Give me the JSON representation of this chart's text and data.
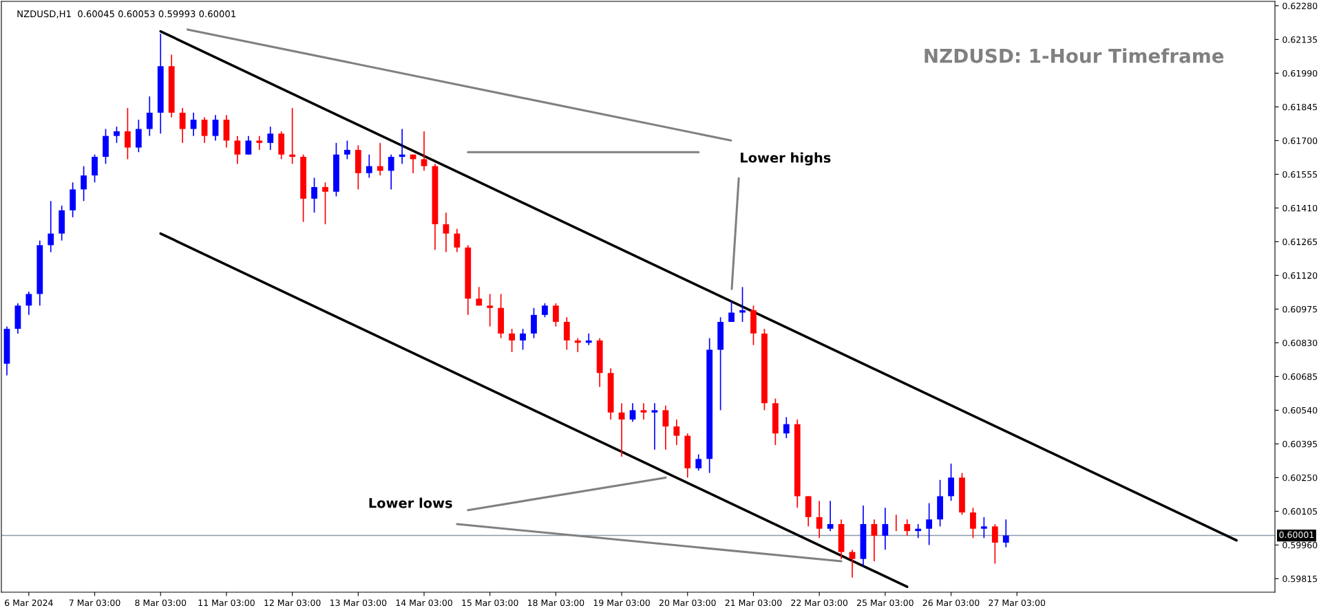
{
  "chart_data": {
    "type": "candlestick",
    "title": "NZDUSD,H1  0.60045 0.60053 0.59993 0.60001",
    "annotations": [
      "NZDUSD: 1-Hour Timeframe",
      "Lower highs",
      "Lower lows"
    ],
    "categories": [
      null,
      null,
      "6 Mar 2024",
      null,
      null,
      null,
      null,
      null,
      "7 Mar 03:00",
      null,
      null,
      null,
      null,
      null,
      "8 Mar 03:00",
      null,
      null,
      null,
      null,
      null,
      "11 Mar 03:00",
      null,
      null,
      null,
      null,
      null,
      "12 Mar 03:00",
      null,
      null,
      null,
      null,
      null,
      "13 Mar 03:00",
      null,
      null,
      null,
      null,
      null,
      "14 Mar 03:00",
      null,
      null,
      null,
      null,
      null,
      "15 Mar 03:00",
      null,
      null,
      null,
      null,
      null,
      "18 Mar 03:00",
      null,
      null,
      null,
      null,
      null,
      "19 Mar 03:00",
      null,
      null,
      null,
      null,
      null,
      "20 Mar 03:00",
      null,
      null,
      null,
      null,
      null,
      "21 Mar 03:00",
      null,
      null,
      null,
      null,
      null,
      "22 Mar 03:00",
      null,
      null,
      null,
      null,
      null,
      "25 Mar 03:00",
      null,
      null,
      null,
      null,
      null,
      "26 Mar 03:00",
      null,
      null,
      null,
      null,
      null,
      "27 Mar 03:00",
      null,
      null,
      null,
      null,
      null,
      null,
      null,
      null,
      null,
      null,
      null,
      null,
      null,
      null,
      null,
      null,
      null,
      null,
      null,
      null,
      null,
      null,
      null
    ],
    "colors": [
      "#0000ff",
      "#0000ff",
      "#0000ff",
      "#0000ff",
      "#0000ff",
      "#0000ff",
      "#0000ff",
      "#0000ff",
      "#0000ff",
      "#0000ff",
      "#0000ff",
      "#ff0000",
      "#0000ff",
      "#0000ff",
      "#0000ff",
      "#ff0000",
      "#ff0000",
      "#0000ff",
      "#ff0000",
      "#0000ff",
      "#ff0000",
      "#ff0000",
      "#0000ff",
      "#ff0000",
      "#0000ff",
      "#ff0000",
      "#ff0000",
      "#ff0000",
      "#0000ff",
      "#ff0000",
      "#0000ff",
      "#0000ff",
      "#ff0000",
      "#0000ff",
      "#ff0000",
      "#0000ff",
      "#0000ff",
      "#ff0000",
      "#ff0000",
      "#ff0000",
      "#ff0000",
      "#ff0000",
      "#ff0000",
      "#ff0000",
      "#ff0000",
      "#ff0000",
      "#ff0000",
      "#0000ff",
      "#0000ff",
      "#0000ff",
      "#ff0000",
      "#ff0000",
      "#ff0000",
      "#0000ff",
      "#ff0000",
      "#ff0000",
      "#ff0000",
      "#0000ff",
      "#ff0000",
      "#0000ff",
      "#ff0000",
      "#ff0000",
      "#ff0000",
      "#0000ff",
      "#0000ff",
      "#0000ff",
      "#0000ff",
      "#0000ff",
      "#ff0000",
      "#ff0000",
      "#ff0000",
      "#0000ff",
      "#ff0000",
      "#ff0000",
      "#ff0000",
      "#0000ff",
      "#ff0000",
      "#ff0000",
      "#0000ff",
      "#ff0000",
      "#0000ff",
      "#ff0000",
      "#ff0000",
      "#0000ff",
      "#0000ff",
      "#0000ff",
      "#0000ff",
      "#ff0000",
      "#ff0000",
      "#0000ff",
      "#ff0000",
      "#0000ff",
      null,
      null,
      null,
      null,
      null,
      null,
      null,
      null,
      null,
      null,
      null,
      null,
      null,
      null,
      null,
      null,
      null,
      null,
      null,
      null,
      null,
      null,
      null,
      null
    ],
    "ohlc": [
      [
        0.6074,
        0.609,
        0.6069,
        0.6089
      ],
      [
        0.6089,
        0.61,
        0.6087,
        0.6099
      ],
      [
        0.6099,
        0.6105,
        0.6095,
        0.6104
      ],
      [
        0.6104,
        0.6127,
        0.6099,
        0.6125
      ],
      [
        0.6125,
        0.6144,
        0.6122,
        0.613
      ],
      [
        0.613,
        0.6142,
        0.6127,
        0.614
      ],
      [
        0.614,
        0.6152,
        0.6137,
        0.6149
      ],
      [
        0.6149,
        0.6159,
        0.6144,
        0.6155
      ],
      [
        0.6155,
        0.6164,
        0.6152,
        0.6163
      ],
      [
        0.6163,
        0.6175,
        0.616,
        0.6172
      ],
      [
        0.6172,
        0.6176,
        0.6169,
        0.6174
      ],
      [
        0.6174,
        0.6184,
        0.6162,
        0.6167
      ],
      [
        0.6167,
        0.6179,
        0.6165,
        0.6175
      ],
      [
        0.6175,
        0.6189,
        0.6172,
        0.6182
      ],
      [
        0.6182,
        0.6216,
        0.6173,
        0.6202
      ],
      [
        0.6202,
        0.6207,
        0.618,
        0.6182
      ],
      [
        0.6182,
        0.6184,
        0.6169,
        0.6175
      ],
      [
        0.6175,
        0.6182,
        0.6172,
        0.6179
      ],
      [
        0.6179,
        0.618,
        0.6169,
        0.6172
      ],
      [
        0.6172,
        0.6181,
        0.617,
        0.6179
      ],
      [
        0.6179,
        0.6181,
        0.6167,
        0.617
      ],
      [
        0.617,
        0.6172,
        0.616,
        0.6164
      ],
      [
        0.6164,
        0.6172,
        0.6164,
        0.617
      ],
      [
        0.617,
        0.6172,
        0.6166,
        0.6169
      ],
      [
        0.6169,
        0.6176,
        0.6166,
        0.6173
      ],
      [
        0.6173,
        0.6174,
        0.6162,
        0.6164
      ],
      [
        0.6164,
        0.6184,
        0.616,
        0.6163
      ],
      [
        0.6163,
        0.6164,
        0.6135,
        0.6145
      ],
      [
        0.6145,
        0.6154,
        0.6139,
        0.615
      ],
      [
        0.615,
        0.6152,
        0.6134,
        0.6148
      ],
      [
        0.6148,
        0.6169,
        0.6146,
        0.6164
      ],
      [
        0.6164,
        0.617,
        0.6162,
        0.6166
      ],
      [
        0.6166,
        0.6168,
        0.6149,
        0.6156
      ],
      [
        0.6156,
        0.6164,
        0.6154,
        0.6159
      ],
      [
        0.6159,
        0.6169,
        0.6155,
        0.6157
      ],
      [
        0.6157,
        0.6164,
        0.6149,
        0.6163
      ],
      [
        0.6163,
        0.6175,
        0.616,
        0.6164
      ],
      [
        0.6164,
        0.6164,
        0.6156,
        0.6162
      ],
      [
        0.6162,
        0.6174,
        0.6157,
        0.6159
      ],
      [
        0.6159,
        0.616,
        0.6123,
        0.6134
      ],
      [
        0.6134,
        0.6139,
        0.6122,
        0.613
      ],
      [
        0.613,
        0.6132,
        0.6122,
        0.6124
      ],
      [
        0.6124,
        0.6125,
        0.6095,
        0.6102
      ],
      [
        0.6102,
        0.6107,
        0.6099,
        0.6099
      ],
      [
        0.6099,
        0.6104,
        0.609,
        0.6098
      ],
      [
        0.6098,
        0.6104,
        0.6085,
        0.6087
      ],
      [
        0.6087,
        0.6089,
        0.6079,
        0.6084
      ],
      [
        0.6084,
        0.6089,
        0.608,
        0.6087
      ],
      [
        0.6087,
        0.6098,
        0.6085,
        0.6095
      ],
      [
        0.6095,
        0.61,
        0.6094,
        0.6099
      ],
      [
        0.6099,
        0.61,
        0.609,
        0.6092
      ],
      [
        0.6092,
        0.6094,
        0.608,
        0.6084
      ],
      [
        0.6084,
        0.6085,
        0.6079,
        0.6083
      ],
      [
        0.6083,
        0.6087,
        0.6082,
        0.6084
      ],
      [
        0.6084,
        0.6085,
        0.6064,
        0.607
      ],
      [
        0.607,
        0.6072,
        0.605,
        0.6053
      ],
      [
        0.6053,
        0.6057,
        0.6034,
        0.605
      ],
      [
        0.605,
        0.6057,
        0.6049,
        0.6054
      ],
      [
        0.6054,
        0.6057,
        0.605,
        0.6053
      ],
      [
        0.6053,
        0.6057,
        0.6037,
        0.6054
      ],
      [
        0.6054,
        0.6056,
        0.6037,
        0.6047
      ],
      [
        0.6047,
        0.605,
        0.6039,
        0.6043
      ],
      [
        0.6043,
        0.6044,
        0.6025,
        0.6029
      ],
      [
        0.6029,
        0.6035,
        0.6028,
        0.6033
      ],
      [
        0.6033,
        0.6085,
        0.6027,
        0.608
      ],
      [
        0.608,
        0.6094,
        0.6054,
        0.6092
      ],
      [
        0.6092,
        0.6101,
        0.6092,
        0.6096
      ],
      [
        0.6096,
        0.6107,
        0.6092,
        0.6097
      ],
      [
        0.6097,
        0.6099,
        0.6082,
        0.6087
      ],
      [
        0.6087,
        0.6089,
        0.6054,
        0.6057
      ],
      [
        0.6057,
        0.6059,
        0.6039,
        0.6044
      ],
      [
        0.6044,
        0.6051,
        0.6042,
        0.6048
      ],
      [
        0.6048,
        0.605,
        0.6012,
        0.6017
      ],
      [
        0.6017,
        0.6017,
        0.6004,
        0.6008
      ],
      [
        0.6008,
        0.6015,
        0.5999,
        0.6003
      ],
      [
        0.6003,
        0.6015,
        0.6002,
        0.6005
      ],
      [
        0.6005,
        0.6007,
        0.599,
        0.5993
      ],
      [
        0.5993,
        0.5994,
        0.5982,
        0.599
      ],
      [
        0.599,
        0.6013,
        0.5987,
        0.6005
      ],
      [
        0.6005,
        0.6007,
        0.5989,
        0.6
      ],
      [
        0.6,
        0.6012,
        0.5994,
        0.6005
      ],
      [
        0.6005,
        0.6009,
        0.6002,
        0.6005
      ],
      [
        0.6005,
        0.6007,
        0.6,
        0.6002
      ],
      [
        0.6002,
        0.6005,
        0.5999,
        0.6003
      ],
      [
        0.6003,
        0.6014,
        0.5996,
        0.6007
      ],
      [
        0.6007,
        0.6024,
        0.6004,
        0.6017
      ],
      [
        0.6017,
        0.6031,
        0.6015,
        0.6025
      ],
      [
        0.6025,
        0.6027,
        0.6009,
        0.601
      ],
      [
        0.601,
        0.6012,
        0.5999,
        0.6003
      ],
      [
        0.6003,
        0.6008,
        0.5999,
        0.6004
      ],
      [
        0.6004,
        0.6005,
        0.5988,
        0.5997
      ],
      [
        0.5997,
        0.6007,
        0.5995,
        0.60001
      ],
      null,
      null,
      null,
      null,
      null,
      null,
      null,
      null,
      null,
      null,
      null,
      null,
      null,
      null,
      null,
      null,
      null,
      null,
      null,
      null,
      null,
      null,
      null,
      null
    ],
    "series": [
      {
        "type": "line",
        "color": "#000000",
        "values": [
          null,
          null,
          null,
          null,
          null,
          null,
          null,
          null,
          null,
          null,
          null,
          null,
          null,
          null,
          0.6217,
          null,
          null,
          null,
          null,
          null,
          null,
          null,
          null,
          null,
          null,
          null,
          null,
          null,
          null,
          null,
          null,
          null,
          null,
          null,
          null,
          null,
          null,
          null,
          null,
          null,
          null,
          null,
          null,
          null,
          null,
          null,
          null,
          null,
          null,
          null,
          null,
          null,
          null,
          null,
          null,
          null,
          null,
          null,
          null,
          null,
          null,
          null,
          null,
          null,
          null,
          null,
          null,
          null,
          null,
          null,
          null,
          null,
          null,
          null,
          null,
          null,
          null,
          null,
          null,
          null,
          null,
          null,
          null,
          null,
          null,
          null,
          null,
          null,
          null,
          null,
          null,
          null,
          null,
          null,
          null,
          null,
          null,
          null,
          null,
          null,
          null,
          null,
          null,
          null,
          null,
          null,
          null,
          null,
          null,
          null,
          null,
          null,
          0.5998,
          null,
          null,
          null
        ]
      },
      {
        "type": "line",
        "color": "#000000",
        "values": [
          null,
          null,
          null,
          null,
          null,
          null,
          null,
          null,
          null,
          null,
          null,
          null,
          null,
          null,
          0.613,
          null,
          null,
          null,
          null,
          null,
          null,
          null,
          null,
          null,
          null,
          null,
          null,
          null,
          null,
          null,
          null,
          null,
          null,
          null,
          null,
          null,
          null,
          null,
          null,
          null,
          null,
          null,
          null,
          null,
          null,
          null,
          null,
          null,
          null,
          null,
          null,
          null,
          null,
          null,
          null,
          null,
          null,
          null,
          null,
          null,
          null,
          null,
          null,
          null,
          null,
          null,
          null,
          null,
          null,
          null,
          null,
          null,
          null,
          null,
          null,
          null,
          null,
          null,
          null,
          null,
          null,
          null,
          0.5978,
          null,
          null,
          null,
          null,
          null,
          null,
          null,
          null,
          null,
          null,
          null,
          null,
          null,
          null,
          null,
          null,
          null,
          null,
          null,
          null,
          null,
          null,
          null,
          null,
          null,
          null,
          null,
          null,
          null,
          null,
          null,
          null,
          null
        ]
      },
      {
        "type": "line",
        "color": "#808080",
        "values": [
          null,
          null,
          null,
          null,
          null,
          null,
          null,
          null,
          null,
          null,
          null,
          null,
          null,
          null,
          null,
          null,
          null,
          null,
          null,
          null,
          null,
          null,
          null,
          null,
          null,
          null,
          null,
          null,
          null,
          null,
          null,
          null,
          null,
          null,
          null,
          null,
          null,
          null,
          null,
          null,
          null,
          null,
          0.6165,
          null,
          null,
          null,
          null,
          null,
          null,
          null,
          null,
          null,
          null,
          null,
          null,
          null,
          null,
          null,
          null,
          null,
          null,
          null,
          null,
          0.6165,
          null,
          null,
          null,
          null,
          null,
          null,
          null,
          null,
          null,
          null,
          null,
          null,
          null,
          null,
          null,
          null,
          null,
          null,
          null,
          null,
          null,
          null,
          null,
          null,
          null,
          null,
          null,
          null,
          null,
          null,
          null,
          null,
          null,
          null,
          null,
          null,
          null,
          null,
          null,
          null,
          null,
          null,
          null,
          null,
          null,
          null,
          null,
          null,
          null,
          null,
          null,
          null
        ]
      },
      {
        "type": "line",
        "color": "#808080",
        "values": [
          null,
          null,
          null,
          null,
          null,
          null,
          null,
          null,
          null,
          null,
          null,
          null,
          null,
          null,
          null,
          null,
          null,
          null,
          null,
          null,
          null,
          null,
          null,
          null,
          null,
          null,
          null,
          null,
          null,
          null,
          null,
          null,
          null,
          null,
          null,
          null,
          null,
          null,
          null,
          null,
          null,
          null,
          0.6011,
          null,
          null,
          null,
          null,
          null,
          null,
          null,
          null,
          null,
          null,
          null,
          null,
          null,
          null,
          null,
          null,
          null,
          0.6025,
          null,
          null,
          null,
          null,
          null,
          null,
          null,
          null,
          null,
          null,
          null,
          null,
          null,
          null,
          null,
          null,
          null,
          null,
          null,
          null,
          null,
          null,
          null,
          null,
          null,
          null,
          null,
          null,
          null,
          null,
          null,
          null,
          null,
          null,
          null,
          null,
          null,
          null,
          null,
          null,
          null,
          null,
          null,
          null,
          null,
          null,
          null,
          null,
          null,
          null,
          null,
          null,
          null,
          null,
          null
        ]
      },
      {
        "type": "line",
        "color": "#808080",
        "values": [
          null,
          null,
          null,
          null,
          null,
          null,
          null,
          null,
          null,
          null,
          null,
          null,
          null,
          null,
          null,
          null,
          null,
          null,
          null,
          null,
          null,
          null,
          null,
          null,
          null,
          null,
          null,
          null,
          null,
          null,
          null,
          null,
          null,
          null,
          null,
          null,
          null,
          null,
          null,
          null,
          null,
          0.6005,
          null,
          null,
          null,
          null,
          null,
          null,
          null,
          null,
          null,
          null,
          null,
          null,
          null,
          null,
          null,
          null,
          null,
          null,
          null,
          null,
          null,
          null,
          null,
          null,
          null,
          null,
          null,
          null,
          null,
          null,
          null,
          null,
          null,
          null,
          0.5989,
          null,
          null,
          null,
          null,
          null,
          null,
          null,
          null,
          null,
          null,
          null,
          null,
          null,
          null,
          null,
          null,
          null,
          null,
          null,
          null,
          null,
          null,
          null,
          null,
          null,
          null,
          null,
          null,
          null,
          null,
          null,
          null,
          null,
          null,
          null,
          null,
          null,
          null,
          null
        ]
      }
    ],
    "ref_lines": [
      {
        "axis": "y",
        "value": 0.60001,
        "label": "0.60001",
        "color": "#8899aa"
      }
    ],
    "ylim": [
      0.59757,
      0.62299
    ],
    "yticks": [
      {
        "value": 0.6228,
        "label": "0.62280"
      },
      {
        "value": 0.62135,
        "label": "0.62135"
      },
      {
        "value": 0.6199,
        "label": "0.61990"
      },
      {
        "value": 0.61845,
        "label": "0.61845"
      },
      {
        "value": 0.617,
        "label": "0.61700"
      },
      {
        "value": 0.61555,
        "label": "0.61555"
      },
      {
        "value": 0.6141,
        "label": "0.61410"
      },
      {
        "value": 0.61265,
        "label": "0.61265"
      },
      {
        "value": 0.6112,
        "label": "0.61120"
      },
      {
        "value": 0.60975,
        "label": "0.60975"
      },
      {
        "value": 0.6083,
        "label": "0.60830"
      },
      {
        "value": 0.60685,
        "label": "0.60685"
      },
      {
        "value": 0.6054,
        "label": "0.60540"
      },
      {
        "value": 0.60395,
        "label": "0.60395"
      },
      {
        "value": 0.6025,
        "label": "0.60250"
      },
      {
        "value": 0.60105,
        "label": "0.60105"
      },
      {
        "value": 0.5996,
        "label": "0.59960"
      },
      {
        "value": 0.59815,
        "label": "0.59815"
      }
    ],
    "grid": false,
    "legend": false
  }
}
